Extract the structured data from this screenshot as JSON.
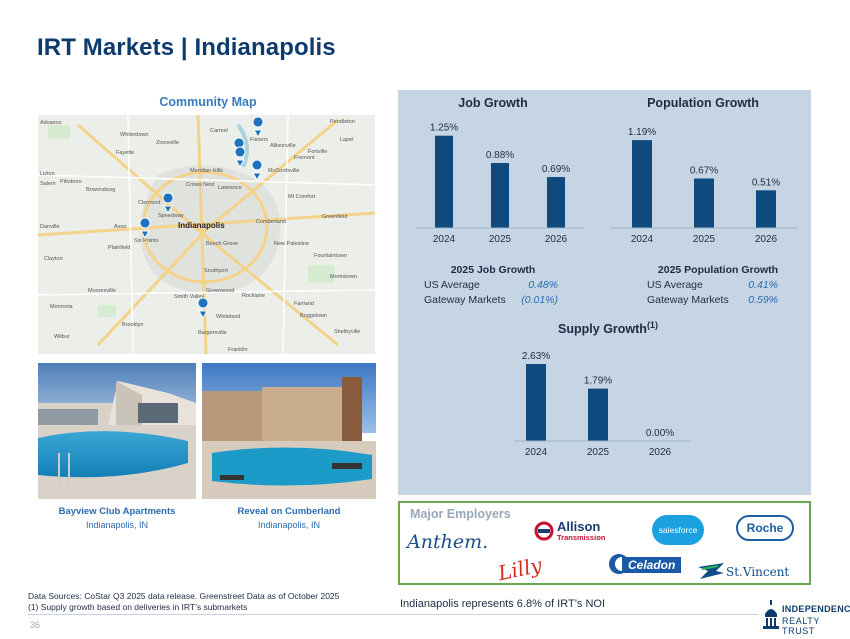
{
  "title": "IRT Markets | Indianapolis",
  "map": {
    "title": "Community Map",
    "labels": [
      "Advance",
      "Whitestown",
      "Pendleton",
      "Zionsville",
      "Carmel",
      "Fishers",
      "Lapel",
      "Fayette",
      "Lawrence",
      "Allisonville",
      "Lizton",
      "Pittsboro",
      "Brownsburg",
      "Clermont",
      "Crows Nest",
      "McCordsville",
      "Salem",
      "Avon",
      "Speedway",
      "Indianapolis",
      "Mt Comfort",
      "Danville",
      "Plainfield",
      "Six Points",
      "Beech Grove",
      "Cumberland",
      "Greenfield",
      "Clayton",
      "Southport",
      "New Palestine",
      "Fountaintown",
      "Morristown",
      "Mooresville",
      "Smith Valley",
      "Greenwood",
      "Rockiane",
      "Fairland",
      "Monrovia",
      "Brooklyn",
      "Bargersville",
      "Whiteland",
      "Boggstown",
      "Shelbyville",
      "Wilbur",
      "Franklin",
      "Meridian Hills",
      "Fortville",
      "Fremont"
    ]
  },
  "photos": [
    {
      "name": "Bayview Club Apartments",
      "location": "Indianapolis, IN"
    },
    {
      "name": "Reveal on Cumberland",
      "location": "Indianapolis, IN"
    }
  ],
  "colors": {
    "bar": "#0e4a7e",
    "accent": "#2b6cb0",
    "panel": "#c5d5e4",
    "title": "#0d3b6e"
  },
  "chart_data": [
    {
      "type": "bar",
      "title": "Job Growth",
      "categories": [
        "2024",
        "2025",
        "2026"
      ],
      "values": [
        1.25,
        0.88,
        0.69
      ],
      "labels": [
        "1.25%",
        "0.88%",
        "0.69%"
      ],
      "ylim": [
        0,
        1.3
      ]
    },
    {
      "type": "bar",
      "title": "Population Growth",
      "categories": [
        "2024",
        "2025",
        "2026"
      ],
      "values": [
        1.19,
        0.67,
        0.51
      ],
      "labels": [
        "1.19%",
        "0.67%",
        "0.51%"
      ],
      "ylim": [
        0,
        1.3
      ]
    },
    {
      "type": "bar",
      "title": "Supply Growth",
      "title_note": "(1)",
      "categories": [
        "2024",
        "2025",
        "2026"
      ],
      "values": [
        2.63,
        1.79,
        0.0
      ],
      "labels": [
        "2.63%",
        "1.79%",
        "0.00%"
      ],
      "ylim": [
        0,
        2.7
      ]
    }
  ],
  "job_stats": {
    "title": "2025 Job Growth",
    "rows": [
      {
        "label": "US Average",
        "value": "0.48%"
      },
      {
        "label": "Gateway Markets",
        "value": "(0.01%)"
      }
    ]
  },
  "pop_stats": {
    "title": "2025 Population Growth",
    "rows": [
      {
        "label": "US Average",
        "value": "0.41%"
      },
      {
        "label": "Gateway Markets",
        "value": "0.59%"
      }
    ]
  },
  "employers": {
    "title": "Major Employers",
    "logos": [
      "Anthem.",
      "Lilly",
      "Allison",
      "Transmission",
      "Celadon",
      "salesforce",
      "Roche",
      "St.Vincent"
    ]
  },
  "footer": {
    "source_line1": "Data Sources: CoStar Q3 2025 data release. Greenstreet Data as of October 2025",
    "source_line2": "(1)  Supply growth based on deliveries in IRT’s submarkets",
    "noi_text": "Indianapolis represents 6.8% of IRT’s NOI",
    "page_number": "36",
    "logo_line1": "INDEPENDENCE",
    "logo_line2": "REALTY TRUST"
  }
}
